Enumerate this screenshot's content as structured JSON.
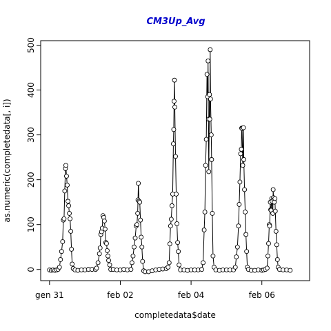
{
  "chart_data": {
    "type": "line",
    "title": "CM3Up_Avg",
    "title_color": "#0000cc",
    "xlabel": "completedata$date",
    "ylabel": "as.numeric(completedata[, i])",
    "x_ticks": [
      {
        "label": "gen 31",
        "day": 0
      },
      {
        "label": "feb 02",
        "day": 2
      },
      {
        "label": "feb 04",
        "day": 4
      },
      {
        "label": "feb 06",
        "day": 6
      }
    ],
    "y_ticks": [
      0,
      100,
      200,
      300,
      400,
      500
    ],
    "ylim": [
      -25,
      510
    ],
    "xlim_days": [
      -0.25,
      7.35
    ],
    "marker": "open-circle",
    "line_color": "#000000",
    "series": [
      {
        "values": [
          [
            0.0,
            -1
          ],
          [
            0.05,
            -2
          ],
          [
            0.1,
            -1
          ],
          [
            0.15,
            -2
          ],
          [
            0.2,
            -1
          ],
          [
            0.24,
            0
          ],
          [
            0.28,
            5
          ],
          [
            0.31,
            22
          ],
          [
            0.34,
            40
          ],
          [
            0.37,
            62
          ],
          [
            0.39,
            110
          ],
          [
            0.41,
            113
          ],
          [
            0.43,
            175
          ],
          [
            0.45,
            225
          ],
          [
            0.46,
            232
          ],
          [
            0.48,
            208
          ],
          [
            0.5,
            188
          ],
          [
            0.52,
            152
          ],
          [
            0.54,
            142
          ],
          [
            0.56,
            125
          ],
          [
            0.58,
            113
          ],
          [
            0.6,
            85
          ],
          [
            0.62,
            45
          ],
          [
            0.64,
            12
          ],
          [
            0.67,
            2
          ],
          [
            0.72,
            -1
          ],
          [
            0.8,
            -2
          ],
          [
            0.9,
            -1
          ],
          [
            1.0,
            -1
          ],
          [
            1.1,
            0
          ],
          [
            1.2,
            0
          ],
          [
            1.3,
            0
          ],
          [
            1.33,
            3
          ],
          [
            1.37,
            15
          ],
          [
            1.41,
            35
          ],
          [
            1.43,
            48
          ],
          [
            1.45,
            78
          ],
          [
            1.47,
            84
          ],
          [
            1.49,
            92
          ],
          [
            1.51,
            120
          ],
          [
            1.53,
            116
          ],
          [
            1.55,
            108
          ],
          [
            1.57,
            90
          ],
          [
            1.59,
            60
          ],
          [
            1.61,
            58
          ],
          [
            1.63,
            42
          ],
          [
            1.65,
            30
          ],
          [
            1.67,
            20
          ],
          [
            1.7,
            10
          ],
          [
            1.73,
            0
          ],
          [
            1.8,
            0
          ],
          [
            1.9,
            -1
          ],
          [
            2.0,
            -1
          ],
          [
            2.1,
            0
          ],
          [
            2.2,
            -1
          ],
          [
            2.3,
            0
          ],
          [
            2.33,
            15
          ],
          [
            2.36,
            30
          ],
          [
            2.39,
            50
          ],
          [
            2.42,
            70
          ],
          [
            2.45,
            97
          ],
          [
            2.47,
            100
          ],
          [
            2.49,
            125
          ],
          [
            2.5,
            155
          ],
          [
            2.51,
            192
          ],
          [
            2.53,
            152
          ],
          [
            2.55,
            150
          ],
          [
            2.57,
            110
          ],
          [
            2.59,
            72
          ],
          [
            2.61,
            50
          ],
          [
            2.63,
            18
          ],
          [
            2.66,
            -3
          ],
          [
            2.7,
            -5
          ],
          [
            2.8,
            -5
          ],
          [
            2.9,
            -3
          ],
          [
            3.0,
            -1
          ],
          [
            3.1,
            0
          ],
          [
            3.2,
            1
          ],
          [
            3.3,
            2
          ],
          [
            3.35,
            5
          ],
          [
            3.38,
            15
          ],
          [
            3.4,
            57
          ],
          [
            3.42,
            97
          ],
          [
            3.44,
            112
          ],
          [
            3.46,
            142
          ],
          [
            3.48,
            168
          ],
          [
            3.5,
            280
          ],
          [
            3.51,
            312
          ],
          [
            3.52,
            375
          ],
          [
            3.53,
            422
          ],
          [
            3.54,
            362
          ],
          [
            3.56,
            252
          ],
          [
            3.58,
            168
          ],
          [
            3.6,
            102
          ],
          [
            3.62,
            60
          ],
          [
            3.64,
            40
          ],
          [
            3.66,
            10
          ],
          [
            3.7,
            -1
          ],
          [
            3.8,
            -1
          ],
          [
            3.9,
            -2
          ],
          [
            4.0,
            -1
          ],
          [
            4.1,
            -1
          ],
          [
            4.2,
            -1
          ],
          [
            4.3,
            0
          ],
          [
            4.34,
            15
          ],
          [
            4.37,
            88
          ],
          [
            4.39,
            128
          ],
          [
            4.41,
            232
          ],
          [
            4.43,
            290
          ],
          [
            4.45,
            435
          ],
          [
            4.47,
            385
          ],
          [
            4.48,
            465
          ],
          [
            4.49,
            335
          ],
          [
            4.5,
            218
          ],
          [
            4.52,
            390
          ],
          [
            4.53,
            335
          ],
          [
            4.54,
            490
          ],
          [
            4.55,
            380
          ],
          [
            4.57,
            300
          ],
          [
            4.58,
            245
          ],
          [
            4.6,
            125
          ],
          [
            4.62,
            30
          ],
          [
            4.65,
            5
          ],
          [
            4.7,
            -1
          ],
          [
            4.8,
            -2
          ],
          [
            4.9,
            -1
          ],
          [
            5.0,
            -1
          ],
          [
            5.1,
            -1
          ],
          [
            5.2,
            -1
          ],
          [
            5.25,
            5
          ],
          [
            5.28,
            28
          ],
          [
            5.31,
            50
          ],
          [
            5.34,
            97
          ],
          [
            5.36,
            145
          ],
          [
            5.38,
            195
          ],
          [
            5.4,
            258
          ],
          [
            5.42,
            268
          ],
          [
            5.43,
            315
          ],
          [
            5.44,
            314
          ],
          [
            5.46,
            232
          ],
          [
            5.48,
            316
          ],
          [
            5.49,
            245
          ],
          [
            5.51,
            178
          ],
          [
            5.53,
            128
          ],
          [
            5.55,
            78
          ],
          [
            5.57,
            40
          ],
          [
            5.59,
            5
          ],
          [
            5.62,
            0
          ],
          [
            5.7,
            -2
          ],
          [
            5.8,
            -2
          ],
          [
            5.9,
            -1
          ],
          [
            6.0,
            -2
          ],
          [
            6.05,
            -1
          ],
          [
            6.1,
            0
          ],
          [
            6.15,
            3
          ],
          [
            6.17,
            30
          ],
          [
            6.19,
            58
          ],
          [
            6.21,
            100
          ],
          [
            6.22,
            97
          ],
          [
            6.24,
            150
          ],
          [
            6.25,
            133
          ],
          [
            6.26,
            132
          ],
          [
            6.28,
            158
          ],
          [
            6.29,
            152
          ],
          [
            6.31,
            125
          ],
          [
            6.32,
            178
          ],
          [
            6.33,
            160
          ],
          [
            6.34,
            155
          ],
          [
            6.35,
            150
          ],
          [
            6.37,
            158
          ],
          [
            6.38,
            130
          ],
          [
            6.4,
            85
          ],
          [
            6.42,
            55
          ],
          [
            6.44,
            22
          ],
          [
            6.46,
            5
          ],
          [
            6.5,
            0
          ],
          [
            6.6,
            -1
          ],
          [
            6.7,
            -1
          ],
          [
            6.8,
            -2
          ]
        ]
      }
    ]
  }
}
